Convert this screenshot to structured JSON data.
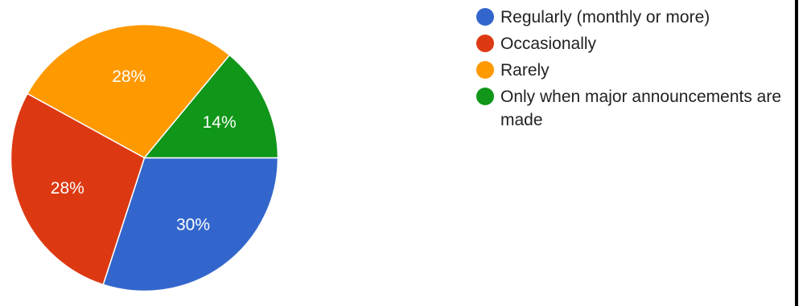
{
  "chart_data": {
    "type": "pie",
    "title": "",
    "slices": [
      {
        "label": "Regularly (monthly or more)",
        "value": 30,
        "display": "30%",
        "color": "#3366cc"
      },
      {
        "label": "Occasionally",
        "value": 28,
        "display": "28%",
        "color": "#dc3912"
      },
      {
        "label": "Rarely",
        "value": 28,
        "display": "28%",
        "color": "#ff9900"
      },
      {
        "label": "Only when major announcements are made",
        "value": 14,
        "display": "14%",
        "color": "#109618"
      }
    ],
    "legend_position": "right",
    "slice_border_color": "#ffffff"
  },
  "legend": {
    "items": [
      {
        "label": "Regularly (monthly or more)",
        "color": "#3366cc"
      },
      {
        "label": "Occasionally",
        "color": "#dc3912"
      },
      {
        "label": "Rarely",
        "color": "#ff9900"
      },
      {
        "label": "Only when major announcements are made",
        "color": "#109618"
      }
    ]
  }
}
